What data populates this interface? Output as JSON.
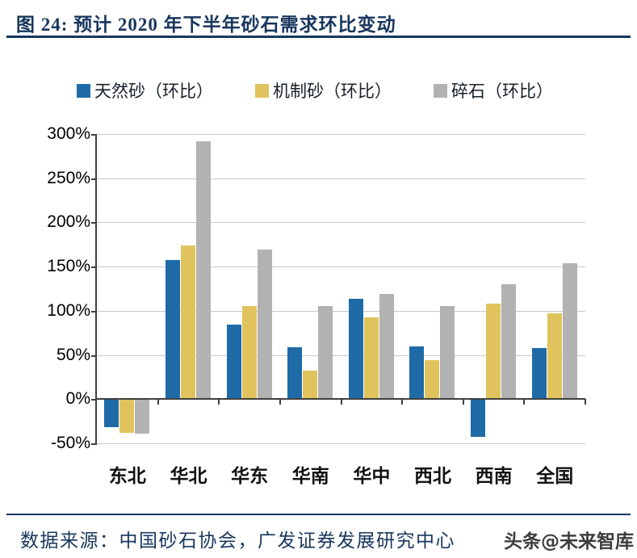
{
  "header": {
    "title": "图 24:  预计 2020 年下半年砂石需求环比变动"
  },
  "footer": {
    "source": "数据来源：中国砂石协会，广发证券发展研究中心",
    "watermark": "头条@未来智库"
  },
  "colors": {
    "accent_navy": "#17365d",
    "series_blue": "#1f6ba8",
    "series_yellow": "#e0c35c",
    "series_gray": "#b2b2b2",
    "gridline": "#c8c8c8",
    "axis": "#404040",
    "watermark_gray": "#3d3d3d"
  },
  "chart_data": {
    "type": "bar",
    "title": "预计2020年下半年砂石需求环比变动",
    "categories": [
      "东北",
      "华北",
      "华东",
      "华南",
      "华中",
      "西北",
      "西南",
      "全国"
    ],
    "series": [
      {
        "name": "天然砂（环比）",
        "color": "#1f6ba8",
        "values": [
          -32,
          157,
          84,
          59,
          114,
          60,
          -43,
          58
        ]
      },
      {
        "name": "机制砂（环比）",
        "color": "#e0c35c",
        "values": [
          -38,
          174,
          105,
          32,
          93,
          44,
          108,
          97
        ]
      },
      {
        "name": "碎石（环比）",
        "color": "#b2b2b2",
        "values": [
          -39,
          292,
          169,
          105,
          119,
          105,
          130,
          154
        ]
      }
    ],
    "xlabel": "",
    "ylabel": "",
    "ylim": [
      -50,
      300
    ],
    "ytick_step": 50,
    "yticks": [
      "300%",
      "250%",
      "200%",
      "150%",
      "100%",
      "50%",
      "0%",
      "-50%"
    ],
    "grid": true,
    "legend_position": "top"
  }
}
